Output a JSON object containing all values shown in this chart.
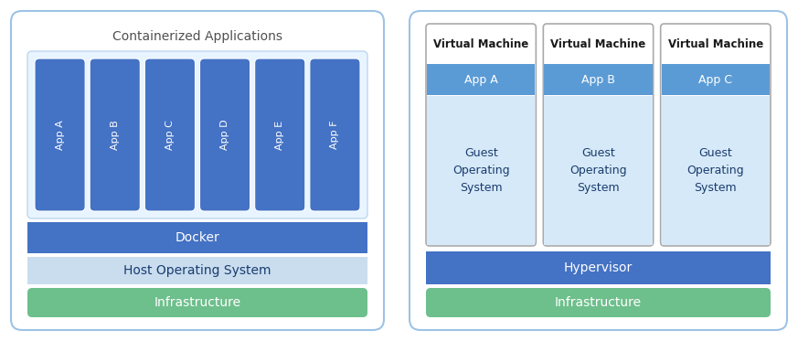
{
  "colors": {
    "blue_dark": "#4472C4",
    "blue_medium": "#5B9BD5",
    "blue_light": "#C9DDEF",
    "green": "#6DBF8B",
    "border_light": "#9DC3E6",
    "text_dark": "#1A3C6E",
    "text_gray": "#505050",
    "text_black": "#1A1A1A"
  },
  "left_panel": {
    "title": "Containerized Applications",
    "apps": [
      "App A",
      "App B",
      "App C",
      "App D",
      "App E",
      "App F"
    ],
    "docker_label": "Docker",
    "host_os_label": "Host Operating System",
    "infra_label": "Infrastructure"
  },
  "right_panel": {
    "vm_label": "Virtual Machine",
    "apps": [
      "App A",
      "App B",
      "App C"
    ],
    "guest_os_label": "Guest\nOperating\nSystem",
    "hypervisor_label": "Hypervisor",
    "infra_label": "Infrastructure"
  }
}
